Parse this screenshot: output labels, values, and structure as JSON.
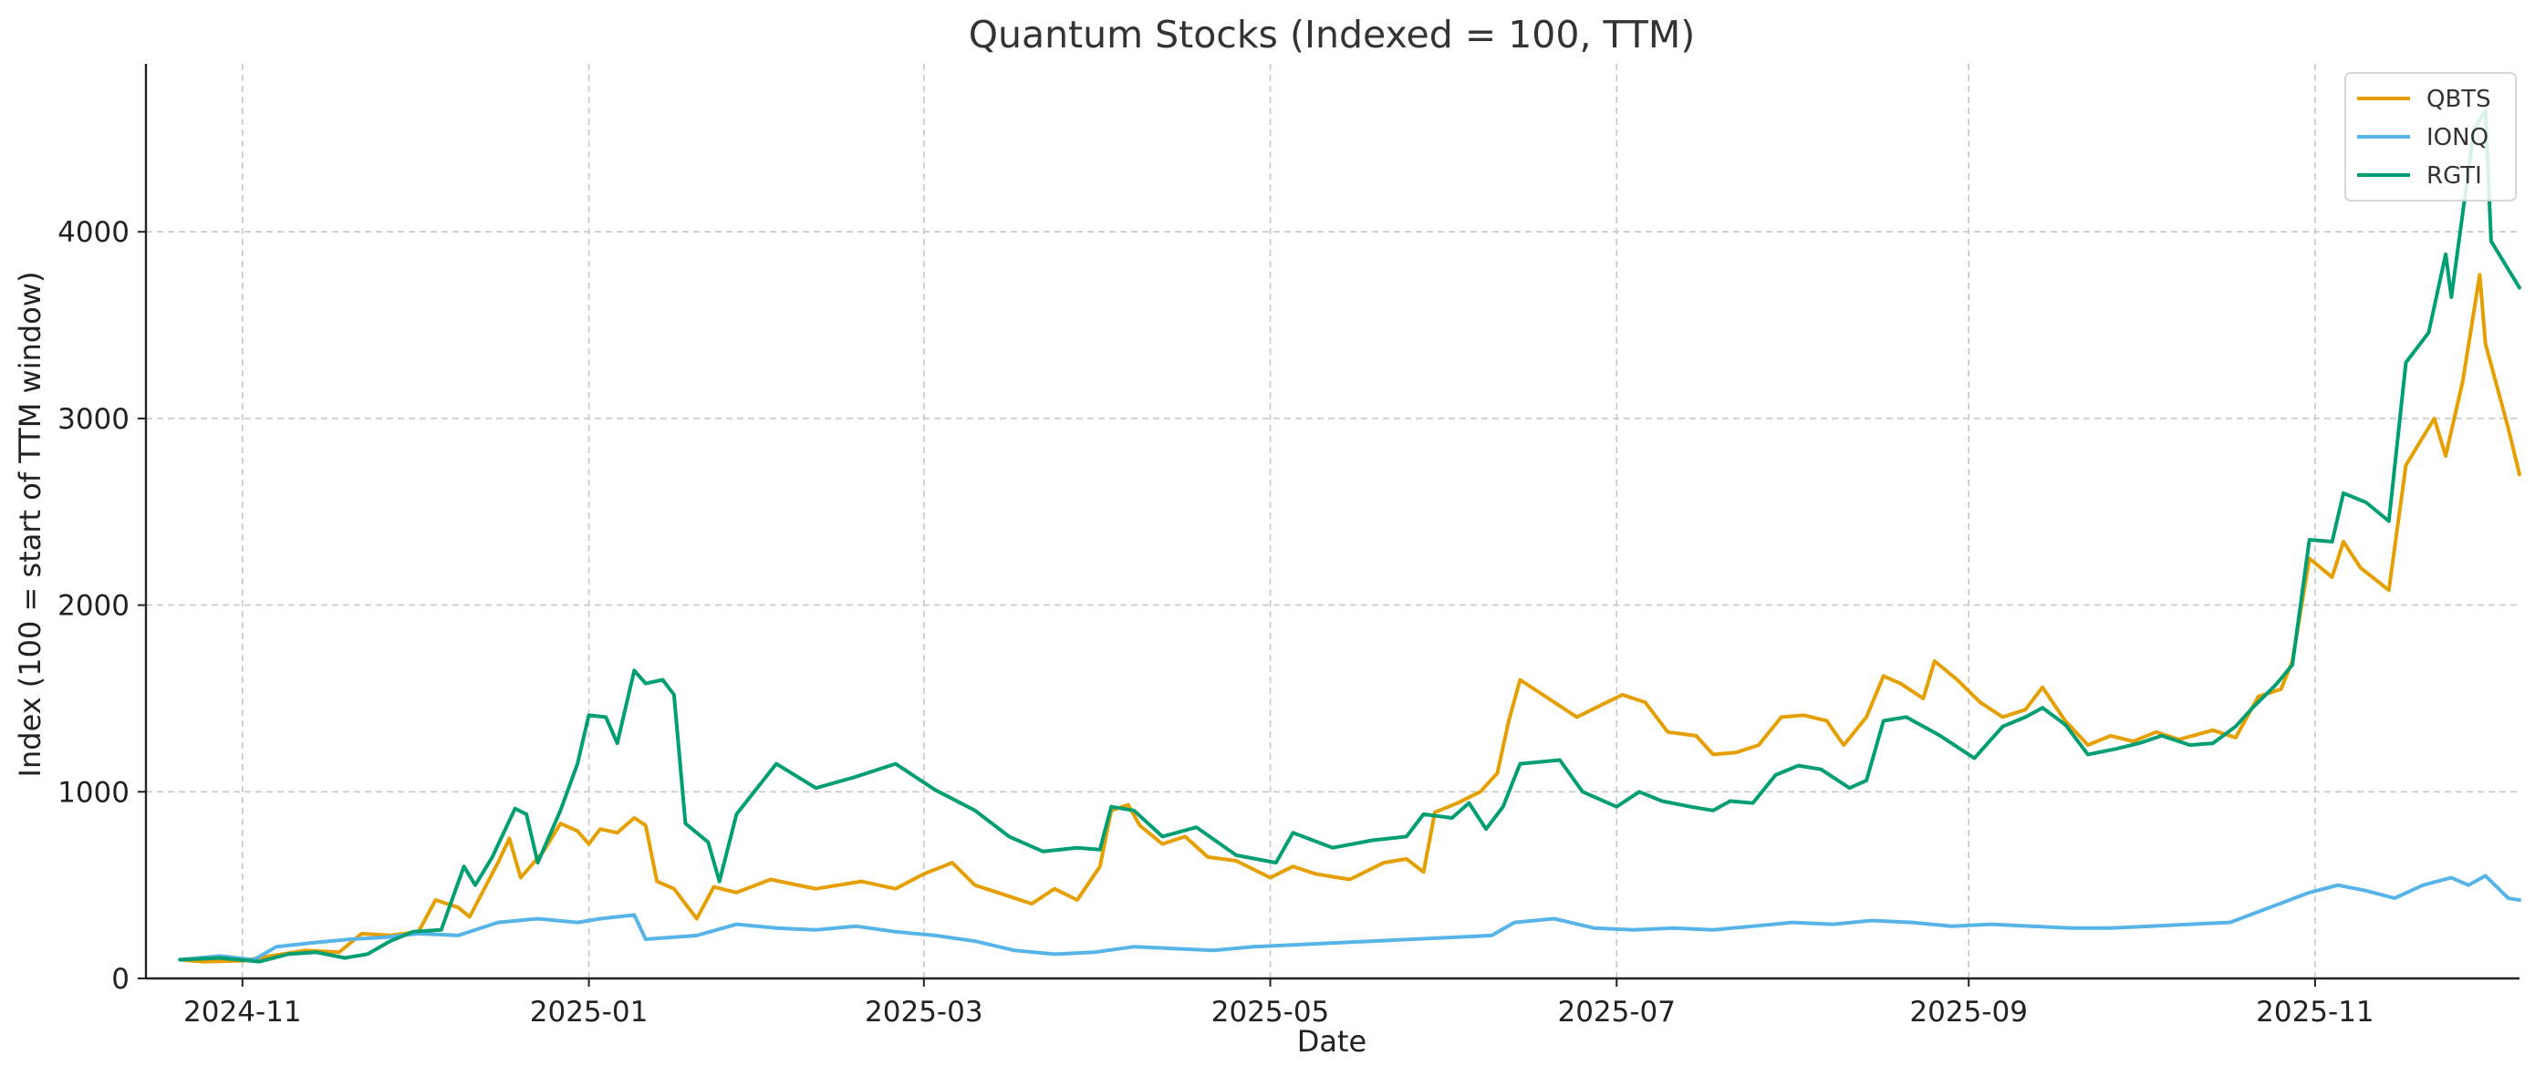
{
  "chart_data": {
    "type": "line",
    "title": "Quantum Stocks (Indexed = 100, TTM)",
    "xlabel": "Date",
    "ylabel": "Index (100 = start of TTM window)",
    "x_tick_labels": [
      "2024-11",
      "2025-01",
      "2025-03",
      "2025-05",
      "2025-07",
      "2025-09",
      "2025-11"
    ],
    "y_ticks": [
      0,
      1000,
      2000,
      3000,
      4000
    ],
    "xlim": [
      "2024-10-15",
      "2025-12-07"
    ],
    "ylim": [
      0,
      4900
    ],
    "grid": true,
    "legend_position": "top-right",
    "series": [
      {
        "name": "QBTS",
        "color": "#E69F00",
        "points": [
          [
            "2024-10-21",
            100
          ],
          [
            "2024-10-25",
            90
          ],
          [
            "2024-11-01",
            95
          ],
          [
            "2024-11-06",
            120
          ],
          [
            "2024-11-12",
            150
          ],
          [
            "2024-11-18",
            140
          ],
          [
            "2024-11-22",
            240
          ],
          [
            "2024-11-27",
            230
          ],
          [
            "2024-12-02",
            250
          ],
          [
            "2024-12-05",
            420
          ],
          [
            "2024-12-09",
            380
          ],
          [
            "2024-12-11",
            330
          ],
          [
            "2024-12-16",
            620
          ],
          [
            "2024-12-18",
            750
          ],
          [
            "2024-12-20",
            540
          ],
          [
            "2024-12-24",
            680
          ],
          [
            "2024-12-27",
            830
          ],
          [
            "2024-12-30",
            790
          ],
          [
            "2025-01-01",
            720
          ],
          [
            "2025-01-03",
            800
          ],
          [
            "2025-01-06",
            780
          ],
          [
            "2025-01-09",
            860
          ],
          [
            "2025-01-11",
            820
          ],
          [
            "2025-01-13",
            520
          ],
          [
            "2025-01-16",
            480
          ],
          [
            "2025-01-20",
            320
          ],
          [
            "2025-01-23",
            490
          ],
          [
            "2025-01-27",
            460
          ],
          [
            "2025-02-02",
            530
          ],
          [
            "2025-02-10",
            480
          ],
          [
            "2025-02-18",
            520
          ],
          [
            "2025-02-24",
            480
          ],
          [
            "2025-03-01",
            560
          ],
          [
            "2025-03-06",
            620
          ],
          [
            "2025-03-10",
            500
          ],
          [
            "2025-03-14",
            460
          ],
          [
            "2025-03-20",
            400
          ],
          [
            "2025-03-24",
            480
          ],
          [
            "2025-03-28",
            420
          ],
          [
            "2025-04-01",
            600
          ],
          [
            "2025-04-03",
            900
          ],
          [
            "2025-04-06",
            930
          ],
          [
            "2025-04-08",
            820
          ],
          [
            "2025-04-12",
            720
          ],
          [
            "2025-04-16",
            760
          ],
          [
            "2025-04-20",
            650
          ],
          [
            "2025-04-25",
            630
          ],
          [
            "2025-05-01",
            540
          ],
          [
            "2025-05-05",
            600
          ],
          [
            "2025-05-09",
            560
          ],
          [
            "2025-05-15",
            530
          ],
          [
            "2025-05-21",
            620
          ],
          [
            "2025-05-25",
            640
          ],
          [
            "2025-05-28",
            570
          ],
          [
            "2025-05-30",
            890
          ],
          [
            "2025-06-03",
            940
          ],
          [
            "2025-06-07",
            1000
          ],
          [
            "2025-06-10",
            1100
          ],
          [
            "2025-06-12",
            1380
          ],
          [
            "2025-06-14",
            1600
          ],
          [
            "2025-06-20",
            1480
          ],
          [
            "2025-06-24",
            1400
          ],
          [
            "2025-06-28",
            1460
          ],
          [
            "2025-07-02",
            1520
          ],
          [
            "2025-07-06",
            1480
          ],
          [
            "2025-07-10",
            1320
          ],
          [
            "2025-07-15",
            1300
          ],
          [
            "2025-07-18",
            1200
          ],
          [
            "2025-07-22",
            1210
          ],
          [
            "2025-07-26",
            1250
          ],
          [
            "2025-07-30",
            1400
          ],
          [
            "2025-08-03",
            1410
          ],
          [
            "2025-08-07",
            1380
          ],
          [
            "2025-08-10",
            1250
          ],
          [
            "2025-08-14",
            1400
          ],
          [
            "2025-08-17",
            1620
          ],
          [
            "2025-08-20",
            1580
          ],
          [
            "2025-08-24",
            1500
          ],
          [
            "2025-08-26",
            1700
          ],
          [
            "2025-08-30",
            1600
          ],
          [
            "2025-09-03",
            1480
          ],
          [
            "2025-09-07",
            1400
          ],
          [
            "2025-09-11",
            1440
          ],
          [
            "2025-09-14",
            1560
          ],
          [
            "2025-09-18",
            1380
          ],
          [
            "2025-09-22",
            1250
          ],
          [
            "2025-09-26",
            1300
          ],
          [
            "2025-09-30",
            1270
          ],
          [
            "2025-10-04",
            1320
          ],
          [
            "2025-10-08",
            1280
          ],
          [
            "2025-10-14",
            1330
          ],
          [
            "2025-10-18",
            1290
          ],
          [
            "2025-10-22",
            1510
          ],
          [
            "2025-10-26",
            1550
          ],
          [
            "2025-10-28",
            1700
          ],
          [
            "2025-10-31",
            2250
          ],
          [
            "2025-11-04",
            2150
          ],
          [
            "2025-11-06",
            2340
          ],
          [
            "2025-11-09",
            2200
          ],
          [
            "2025-11-14",
            2080
          ],
          [
            "2025-11-17",
            2750
          ],
          [
            "2025-11-22",
            3000
          ],
          [
            "2025-11-24",
            2800
          ],
          [
            "2025-11-27",
            3200
          ],
          [
            "2025-11-30",
            3770
          ],
          [
            "2025-12-01",
            3400
          ],
          [
            "2025-12-05",
            2950
          ],
          [
            "2025-12-07",
            2700
          ]
        ]
      },
      {
        "name": "IONQ",
        "color": "#56B4E9",
        "points": [
          [
            "2024-10-21",
            100
          ],
          [
            "2024-10-28",
            120
          ],
          [
            "2024-11-03",
            100
          ],
          [
            "2024-11-07",
            170
          ],
          [
            "2024-11-13",
            190
          ],
          [
            "2024-11-20",
            210
          ],
          [
            "2024-11-26",
            220
          ],
          [
            "2024-12-02",
            240
          ],
          [
            "2024-12-09",
            230
          ],
          [
            "2024-12-16",
            300
          ],
          [
            "2024-12-23",
            320
          ],
          [
            "2024-12-30",
            300
          ],
          [
            "2025-01-03",
            320
          ],
          [
            "2025-01-09",
            340
          ],
          [
            "2025-01-11",
            210
          ],
          [
            "2025-01-20",
            230
          ],
          [
            "2025-01-27",
            290
          ],
          [
            "2025-02-03",
            270
          ],
          [
            "2025-02-10",
            260
          ],
          [
            "2025-02-17",
            280
          ],
          [
            "2025-02-24",
            250
          ],
          [
            "2025-03-03",
            230
          ],
          [
            "2025-03-10",
            200
          ],
          [
            "2025-03-17",
            150
          ],
          [
            "2025-03-24",
            130
          ],
          [
            "2025-03-31",
            140
          ],
          [
            "2025-04-07",
            170
          ],
          [
            "2025-04-14",
            160
          ],
          [
            "2025-04-21",
            150
          ],
          [
            "2025-04-28",
            170
          ],
          [
            "2025-05-05",
            180
          ],
          [
            "2025-05-12",
            190
          ],
          [
            "2025-05-19",
            200
          ],
          [
            "2025-05-26",
            210
          ],
          [
            "2025-06-02",
            220
          ],
          [
            "2025-06-09",
            230
          ],
          [
            "2025-06-13",
            300
          ],
          [
            "2025-06-20",
            320
          ],
          [
            "2025-06-27",
            270
          ],
          [
            "2025-07-04",
            260
          ],
          [
            "2025-07-11",
            270
          ],
          [
            "2025-07-18",
            260
          ],
          [
            "2025-07-25",
            280
          ],
          [
            "2025-08-01",
            300
          ],
          [
            "2025-08-08",
            290
          ],
          [
            "2025-08-15",
            310
          ],
          [
            "2025-08-22",
            300
          ],
          [
            "2025-08-29",
            280
          ],
          [
            "2025-09-05",
            290
          ],
          [
            "2025-09-12",
            280
          ],
          [
            "2025-09-19",
            270
          ],
          [
            "2025-09-26",
            270
          ],
          [
            "2025-10-03",
            280
          ],
          [
            "2025-10-10",
            290
          ],
          [
            "2025-10-17",
            300
          ],
          [
            "2025-10-24",
            380
          ],
          [
            "2025-10-31",
            460
          ],
          [
            "2025-11-05",
            500
          ],
          [
            "2025-11-10",
            470
          ],
          [
            "2025-11-15",
            430
          ],
          [
            "2025-11-20",
            500
          ],
          [
            "2025-11-25",
            540
          ],
          [
            "2025-11-28",
            500
          ],
          [
            "2025-12-01",
            550
          ],
          [
            "2025-12-05",
            430
          ],
          [
            "2025-12-07",
            420
          ]
        ]
      },
      {
        "name": "RGTI",
        "color": "#009E73",
        "points": [
          [
            "2024-10-21",
            100
          ],
          [
            "2024-10-28",
            110
          ],
          [
            "2024-11-04",
            90
          ],
          [
            "2024-11-09",
            130
          ],
          [
            "2024-11-14",
            140
          ],
          [
            "2024-11-19",
            110
          ],
          [
            "2024-11-23",
            130
          ],
          [
            "2024-11-27",
            200
          ],
          [
            "2024-12-01",
            250
          ],
          [
            "2024-12-06",
            260
          ],
          [
            "2024-12-10",
            600
          ],
          [
            "2024-12-12",
            500
          ],
          [
            "2024-12-15",
            650
          ],
          [
            "2024-12-19",
            910
          ],
          [
            "2024-12-21",
            880
          ],
          [
            "2024-12-23",
            620
          ],
          [
            "2024-12-27",
            900
          ],
          [
            "2024-12-30",
            1150
          ],
          [
            "2025-01-01",
            1410
          ],
          [
            "2025-01-04",
            1400
          ],
          [
            "2025-01-06",
            1260
          ],
          [
            "2025-01-09",
            1650
          ],
          [
            "2025-01-11",
            1580
          ],
          [
            "2025-01-14",
            1600
          ],
          [
            "2025-01-16",
            1520
          ],
          [
            "2025-01-18",
            830
          ],
          [
            "2025-01-22",
            730
          ],
          [
            "2025-01-24",
            520
          ],
          [
            "2025-01-27",
            880
          ],
          [
            "2025-02-03",
            1150
          ],
          [
            "2025-02-10",
            1020
          ],
          [
            "2025-02-17",
            1080
          ],
          [
            "2025-02-24",
            1150
          ],
          [
            "2025-03-03",
            1010
          ],
          [
            "2025-03-10",
            900
          ],
          [
            "2025-03-16",
            760
          ],
          [
            "2025-03-22",
            680
          ],
          [
            "2025-03-28",
            700
          ],
          [
            "2025-04-01",
            690
          ],
          [
            "2025-04-03",
            920
          ],
          [
            "2025-04-07",
            900
          ],
          [
            "2025-04-12",
            760
          ],
          [
            "2025-04-18",
            810
          ],
          [
            "2025-04-25",
            660
          ],
          [
            "2025-05-02",
            620
          ],
          [
            "2025-05-05",
            780
          ],
          [
            "2025-05-12",
            700
          ],
          [
            "2025-05-19",
            740
          ],
          [
            "2025-05-25",
            760
          ],
          [
            "2025-05-28",
            880
          ],
          [
            "2025-06-02",
            860
          ],
          [
            "2025-06-05",
            940
          ],
          [
            "2025-06-08",
            800
          ],
          [
            "2025-06-11",
            920
          ],
          [
            "2025-06-14",
            1150
          ],
          [
            "2025-06-21",
            1170
          ],
          [
            "2025-06-25",
            1000
          ],
          [
            "2025-07-01",
            920
          ],
          [
            "2025-07-05",
            1000
          ],
          [
            "2025-07-09",
            950
          ],
          [
            "2025-07-14",
            920
          ],
          [
            "2025-07-18",
            900
          ],
          [
            "2025-07-21",
            950
          ],
          [
            "2025-07-25",
            940
          ],
          [
            "2025-07-29",
            1090
          ],
          [
            "2025-08-02",
            1140
          ],
          [
            "2025-08-06",
            1120
          ],
          [
            "2025-08-11",
            1020
          ],
          [
            "2025-08-14",
            1060
          ],
          [
            "2025-08-17",
            1380
          ],
          [
            "2025-08-21",
            1400
          ],
          [
            "2025-08-27",
            1300
          ],
          [
            "2025-09-02",
            1180
          ],
          [
            "2025-09-07",
            1350
          ],
          [
            "2025-09-11",
            1400
          ],
          [
            "2025-09-14",
            1450
          ],
          [
            "2025-09-18",
            1360
          ],
          [
            "2025-09-22",
            1200
          ],
          [
            "2025-09-27",
            1230
          ],
          [
            "2025-10-01",
            1260
          ],
          [
            "2025-10-05",
            1300
          ],
          [
            "2025-10-10",
            1250
          ],
          [
            "2025-10-14",
            1260
          ],
          [
            "2025-10-18",
            1350
          ],
          [
            "2025-10-21",
            1450
          ],
          [
            "2025-10-25",
            1570
          ],
          [
            "2025-10-28",
            1680
          ],
          [
            "2025-10-31",
            2350
          ],
          [
            "2025-11-04",
            2340
          ],
          [
            "2025-11-06",
            2600
          ],
          [
            "2025-11-10",
            2550
          ],
          [
            "2025-11-14",
            2450
          ],
          [
            "2025-11-17",
            3300
          ],
          [
            "2025-11-21",
            3460
          ],
          [
            "2025-11-24",
            3880
          ],
          [
            "2025-11-25",
            3650
          ],
          [
            "2025-11-29",
            4550
          ],
          [
            "2025-12-01",
            4650
          ],
          [
            "2025-12-02",
            3950
          ],
          [
            "2025-12-07",
            3700
          ]
        ]
      }
    ]
  }
}
